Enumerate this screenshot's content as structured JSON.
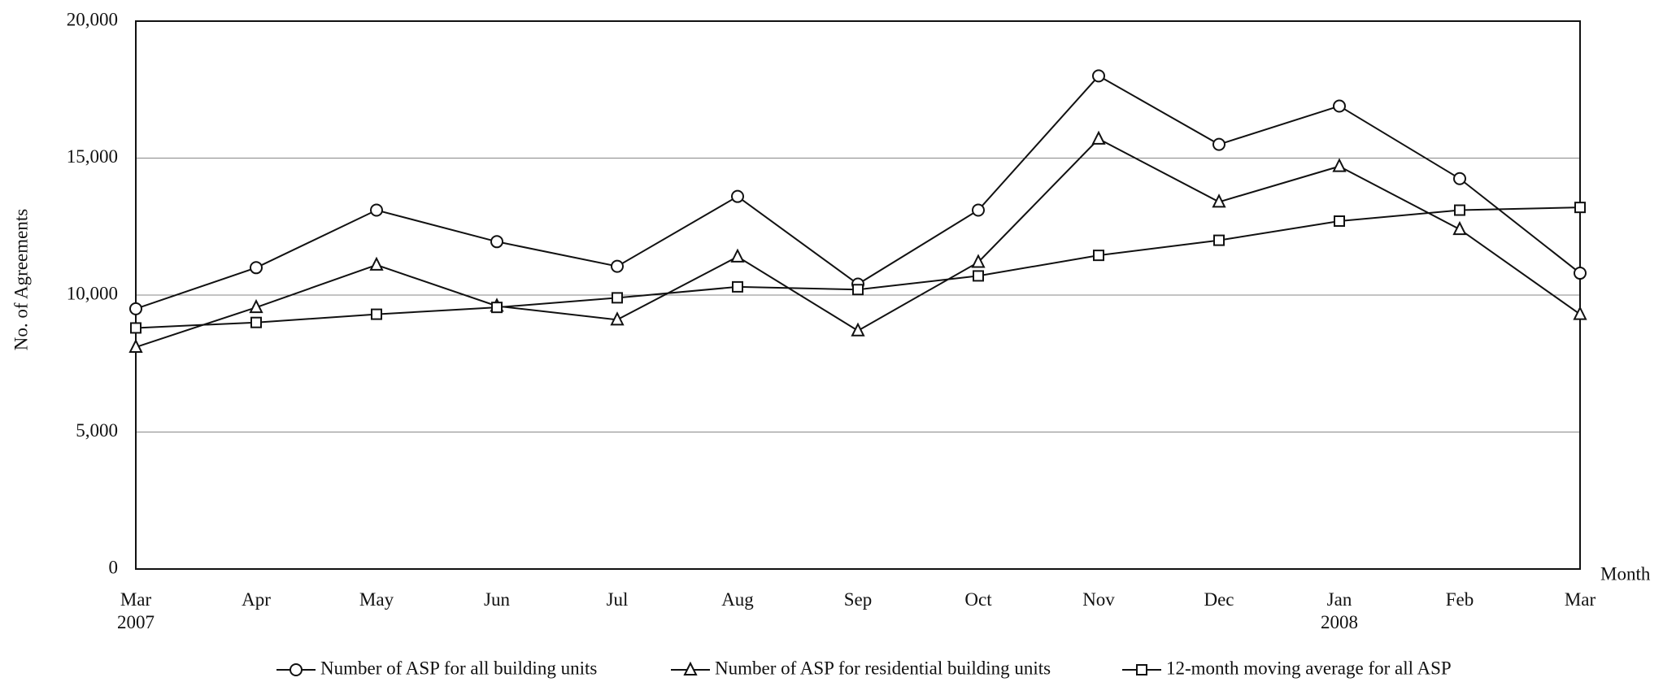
{
  "chart_data": {
    "type": "line",
    "y_label": "No. of Agreements",
    "x_label": "Month",
    "categories": [
      "Mar\n2007",
      "Apr",
      "May",
      "Jun",
      "Jul",
      "Aug",
      "Sep",
      "Oct",
      "Nov",
      "Dec",
      "Jan\n2008",
      "Feb",
      "Mar"
    ],
    "series": [
      {
        "name": "Number of ASP for all building units",
        "color": "#111111",
        "marker": "circle",
        "values": [
          9500,
          11000,
          13100,
          11950,
          11050,
          13600,
          10400,
          13100,
          18000,
          15500,
          16900,
          14250,
          10800
        ]
      },
      {
        "name": "Number of ASP for residential building units",
        "color": "#111111",
        "marker": "triangle",
        "values": [
          8100,
          9550,
          11100,
          9600,
          9100,
          11400,
          8700,
          11200,
          15700,
          13400,
          14700,
          12400,
          9300
        ]
      },
      {
        "name": "12-month moving average for all ASP",
        "color": "#111111",
        "marker": "square",
        "values": [
          8800,
          9000,
          9300,
          9550,
          9900,
          10300,
          10200,
          10700,
          11450,
          12000,
          12700,
          13100,
          13200
        ]
      }
    ],
    "ylim": [
      0,
      20000
    ],
    "yticks": [
      0,
      {
        "value": 5000,
        "label": "5,000"
      },
      {
        "value": 10000,
        "label": "10,000"
      },
      {
        "value": 15000,
        "label": "15,000"
      },
      {
        "value": 20000,
        "label": "20,000"
      }
    ],
    "grid": true
  }
}
